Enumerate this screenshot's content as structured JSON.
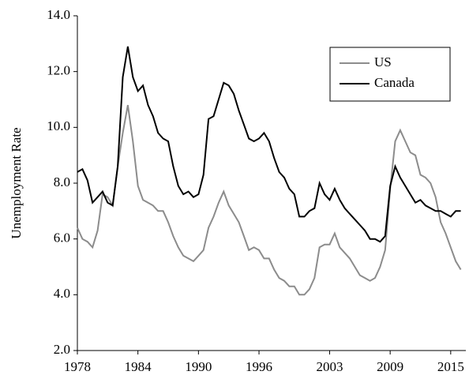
{
  "chart_data": {
    "type": "line",
    "y_label": "Unemployment Rate",
    "x": [
      1978.0,
      1978.5,
      1979.0,
      1979.5,
      1980.0,
      1980.5,
      1981.0,
      1981.5,
      1982.0,
      1982.5,
      1983.0,
      1983.5,
      1984.0,
      1984.5,
      1985.0,
      1985.5,
      1986.0,
      1986.5,
      1987.0,
      1987.5,
      1988.0,
      1988.5,
      1989.0,
      1989.5,
      1990.0,
      1990.5,
      1991.0,
      1991.5,
      1992.0,
      1992.5,
      1993.0,
      1993.5,
      1994.0,
      1994.5,
      1995.0,
      1995.5,
      1996.0,
      1996.5,
      1997.0,
      1997.5,
      1998.0,
      1998.5,
      1999.0,
      1999.5,
      2000.0,
      2000.5,
      2001.0,
      2001.5,
      2002.0,
      2002.5,
      2003.0,
      2003.5,
      2004.0,
      2004.5,
      2005.0,
      2005.5,
      2006.0,
      2006.5,
      2007.0,
      2007.5,
      2008.0,
      2008.5,
      2009.0,
      2009.5,
      2010.0,
      2010.5,
      2011.0,
      2011.5,
      2012.0,
      2012.5,
      2013.0,
      2013.5,
      2014.0,
      2014.5,
      2015.0,
      2015.5,
      2016.0
    ],
    "series": [
      {
        "name": "US",
        "color": "#8c8c8c",
        "values": [
          6.4,
          6.0,
          5.9,
          5.7,
          6.3,
          7.6,
          7.5,
          7.2,
          8.6,
          9.8,
          10.8,
          9.5,
          7.9,
          7.4,
          7.3,
          7.2,
          7.0,
          7.0,
          6.6,
          6.1,
          5.7,
          5.4,
          5.3,
          5.2,
          5.4,
          5.6,
          6.4,
          6.8,
          7.3,
          7.7,
          7.2,
          6.9,
          6.6,
          6.1,
          5.6,
          5.7,
          5.6,
          5.3,
          5.3,
          4.9,
          4.6,
          4.5,
          4.3,
          4.3,
          4.0,
          4.0,
          4.2,
          4.6,
          5.7,
          5.8,
          5.8,
          6.2,
          5.7,
          5.5,
          5.3,
          5.0,
          4.7,
          4.6,
          4.5,
          4.6,
          5.0,
          5.6,
          7.8,
          9.5,
          9.9,
          9.5,
          9.1,
          9.0,
          8.3,
          8.2,
          8.0,
          7.5,
          6.6,
          6.2,
          5.7,
          5.2,
          4.9
        ]
      },
      {
        "name": "Canada",
        "color": "#000000",
        "values": [
          8.4,
          8.5,
          8.1,
          7.3,
          7.5,
          7.7,
          7.3,
          7.2,
          8.6,
          11.8,
          12.9,
          11.8,
          11.3,
          11.5,
          10.8,
          10.4,
          9.8,
          9.6,
          9.5,
          8.6,
          7.9,
          7.6,
          7.7,
          7.5,
          7.6,
          8.3,
          10.3,
          10.4,
          11.0,
          11.6,
          11.5,
          11.2,
          10.6,
          10.1,
          9.6,
          9.5,
          9.6,
          9.8,
          9.5,
          8.9,
          8.4,
          8.2,
          7.8,
          7.6,
          6.8,
          6.8,
          7.0,
          7.1,
          8.0,
          7.6,
          7.4,
          7.8,
          7.4,
          7.1,
          6.9,
          6.7,
          6.5,
          6.3,
          6.0,
          6.0,
          5.9,
          6.1,
          7.9,
          8.6,
          8.2,
          7.9,
          7.6,
          7.3,
          7.4,
          7.2,
          7.1,
          7.0,
          7.0,
          6.9,
          6.8,
          7.0,
          7.0
        ]
      }
    ],
    "xlim": [
      1978,
      2016.5
    ],
    "xticks": [
      1978,
      1984,
      1990,
      1996,
      2003,
      2009,
      2015
    ],
    "ylim": [
      2,
      14
    ],
    "yticks": [
      {
        "value": 2,
        "label": "2.0"
      },
      {
        "value": 4,
        "label": "4.0"
      },
      {
        "value": 6,
        "label": "6.0"
      },
      {
        "value": 8,
        "label": "8.0"
      },
      {
        "value": 10,
        "label": "10.0"
      },
      {
        "value": 12,
        "label": "12.0"
      },
      {
        "value": 14,
        "label": "14.0"
      }
    ],
    "legend": "top-right"
  }
}
